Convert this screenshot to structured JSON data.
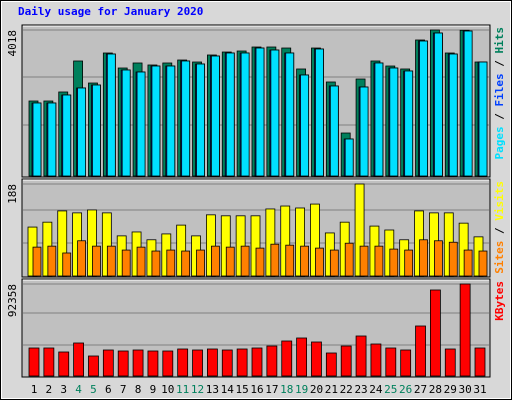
{
  "chart_data": [
    {
      "type": "bar",
      "title": "Daily usage for January 2020",
      "categories": [
        "1",
        "2",
        "3",
        "4",
        "5",
        "6",
        "7",
        "8",
        "9",
        "10",
        "11",
        "12",
        "13",
        "14",
        "15",
        "16",
        "17",
        "18",
        "19",
        "20",
        "21",
        "22",
        "23",
        "24",
        "25",
        "26",
        "27",
        "28",
        "29",
        "30",
        "31"
      ],
      "ylim": [
        0,
        4018
      ],
      "yticks": [
        4018
      ],
      "legend_separator": "/",
      "series": [
        {
          "name": "Hits",
          "color": "#00805c",
          "values": [
            2064,
            2064,
            2312,
            3165,
            2559,
            3385,
            2972,
            3110,
            3055,
            3110,
            3192,
            3137,
            3330,
            3412,
            3440,
            3550,
            3550,
            3522,
            2945,
            3522,
            2587,
            1183,
            2669,
            3165,
            3027,
            2945,
            3743,
            4018,
            3385,
            4010,
            3137
          ]
        },
        {
          "name": "Files",
          "color": "#0040ff",
          "values": [
            2009,
            2009,
            2229,
            2422,
            2504,
            3357,
            2917,
            2862,
            3027,
            3027,
            3165,
            3082,
            3302,
            3385,
            3385,
            3522,
            3467,
            3385,
            2780,
            3495,
            2477,
            1018,
            2449,
            3110,
            2972,
            2890,
            3715,
            3935,
            3357,
            3990,
            3137
          ]
        },
        {
          "name": "Pages",
          "color": "#00e0ff",
          "values": [
            2009,
            2009,
            2229,
            2422,
            2504,
            3357,
            2917,
            2862,
            3027,
            3027,
            3165,
            3082,
            3302,
            3385,
            3385,
            3522,
            3467,
            3385,
            2780,
            3495,
            2477,
            1018,
            2449,
            3110,
            2972,
            2890,
            3715,
            3935,
            3357,
            3990,
            3137
          ]
        }
      ]
    },
    {
      "type": "bar",
      "categories": [
        "1",
        "2",
        "3",
        "4",
        "5",
        "6",
        "7",
        "8",
        "9",
        "10",
        "11",
        "12",
        "13",
        "14",
        "15",
        "16",
        "17",
        "18",
        "19",
        "20",
        "21",
        "22",
        "23",
        "24",
        "25",
        "26",
        "27",
        "28",
        "29",
        "30",
        "31"
      ],
      "ylim": [
        0,
        188
      ],
      "yticks": [
        188
      ],
      "legend_separator": "/",
      "series": [
        {
          "name": "Visits",
          "color": "#ffff00",
          "values": [
            100,
            110,
            133,
            129,
            135,
            129,
            82,
            90,
            74,
            86,
            104,
            82,
            125,
            123,
            123,
            123,
            137,
            143,
            139,
            147,
            88,
            110,
            188,
            102,
            94,
            74,
            133,
            129,
            129,
            108,
            80
          ]
        },
        {
          "name": "Sites",
          "color": "#ff8000",
          "values": [
            59,
            61,
            47,
            72,
            61,
            61,
            53,
            59,
            51,
            53,
            51,
            53,
            61,
            59,
            61,
            57,
            65,
            63,
            61,
            57,
            53,
            67,
            61,
            61,
            55,
            53,
            74,
            72,
            69,
            53,
            51
          ]
        }
      ]
    },
    {
      "type": "bar",
      "categories": [
        "1",
        "2",
        "3",
        "4",
        "5",
        "6",
        "7",
        "8",
        "9",
        "10",
        "11",
        "12",
        "13",
        "14",
        "15",
        "16",
        "17",
        "18",
        "19",
        "20",
        "21",
        "22",
        "23",
        "24",
        "25",
        "26",
        "27",
        "28",
        "29",
        "30",
        "31"
      ],
      "category_colors": [
        "#000000",
        "#000000",
        "#000000",
        "#00805c",
        "#00805c",
        "#000000",
        "#000000",
        "#000000",
        "#000000",
        "#000000",
        "#00805c",
        "#00805c",
        "#000000",
        "#000000",
        "#000000",
        "#000000",
        "#000000",
        "#00805c",
        "#00805c",
        "#000000",
        "#000000",
        "#000000",
        "#000000",
        "#000000",
        "#00805c",
        "#00805c",
        "#000000",
        "#000000",
        "#000000",
        "#000000",
        "#000000"
      ],
      "ylim": [
        0,
        92358
      ],
      "yticks": [
        92358
      ],
      "series": [
        {
          "name": "KBytes",
          "color": "#ff0000",
          "values": [
            28112,
            28112,
            24096,
            33132,
            20080,
            26104,
            25100,
            26104,
            25100,
            25100,
            27108,
            26104,
            27108,
            26104,
            27108,
            28112,
            30120,
            35140,
            38152,
            34136,
            23092,
            30120,
            40160,
            32128,
            28112,
            26104,
            50200,
            86344,
            27108,
            92358,
            28112
          ]
        }
      ]
    }
  ]
}
